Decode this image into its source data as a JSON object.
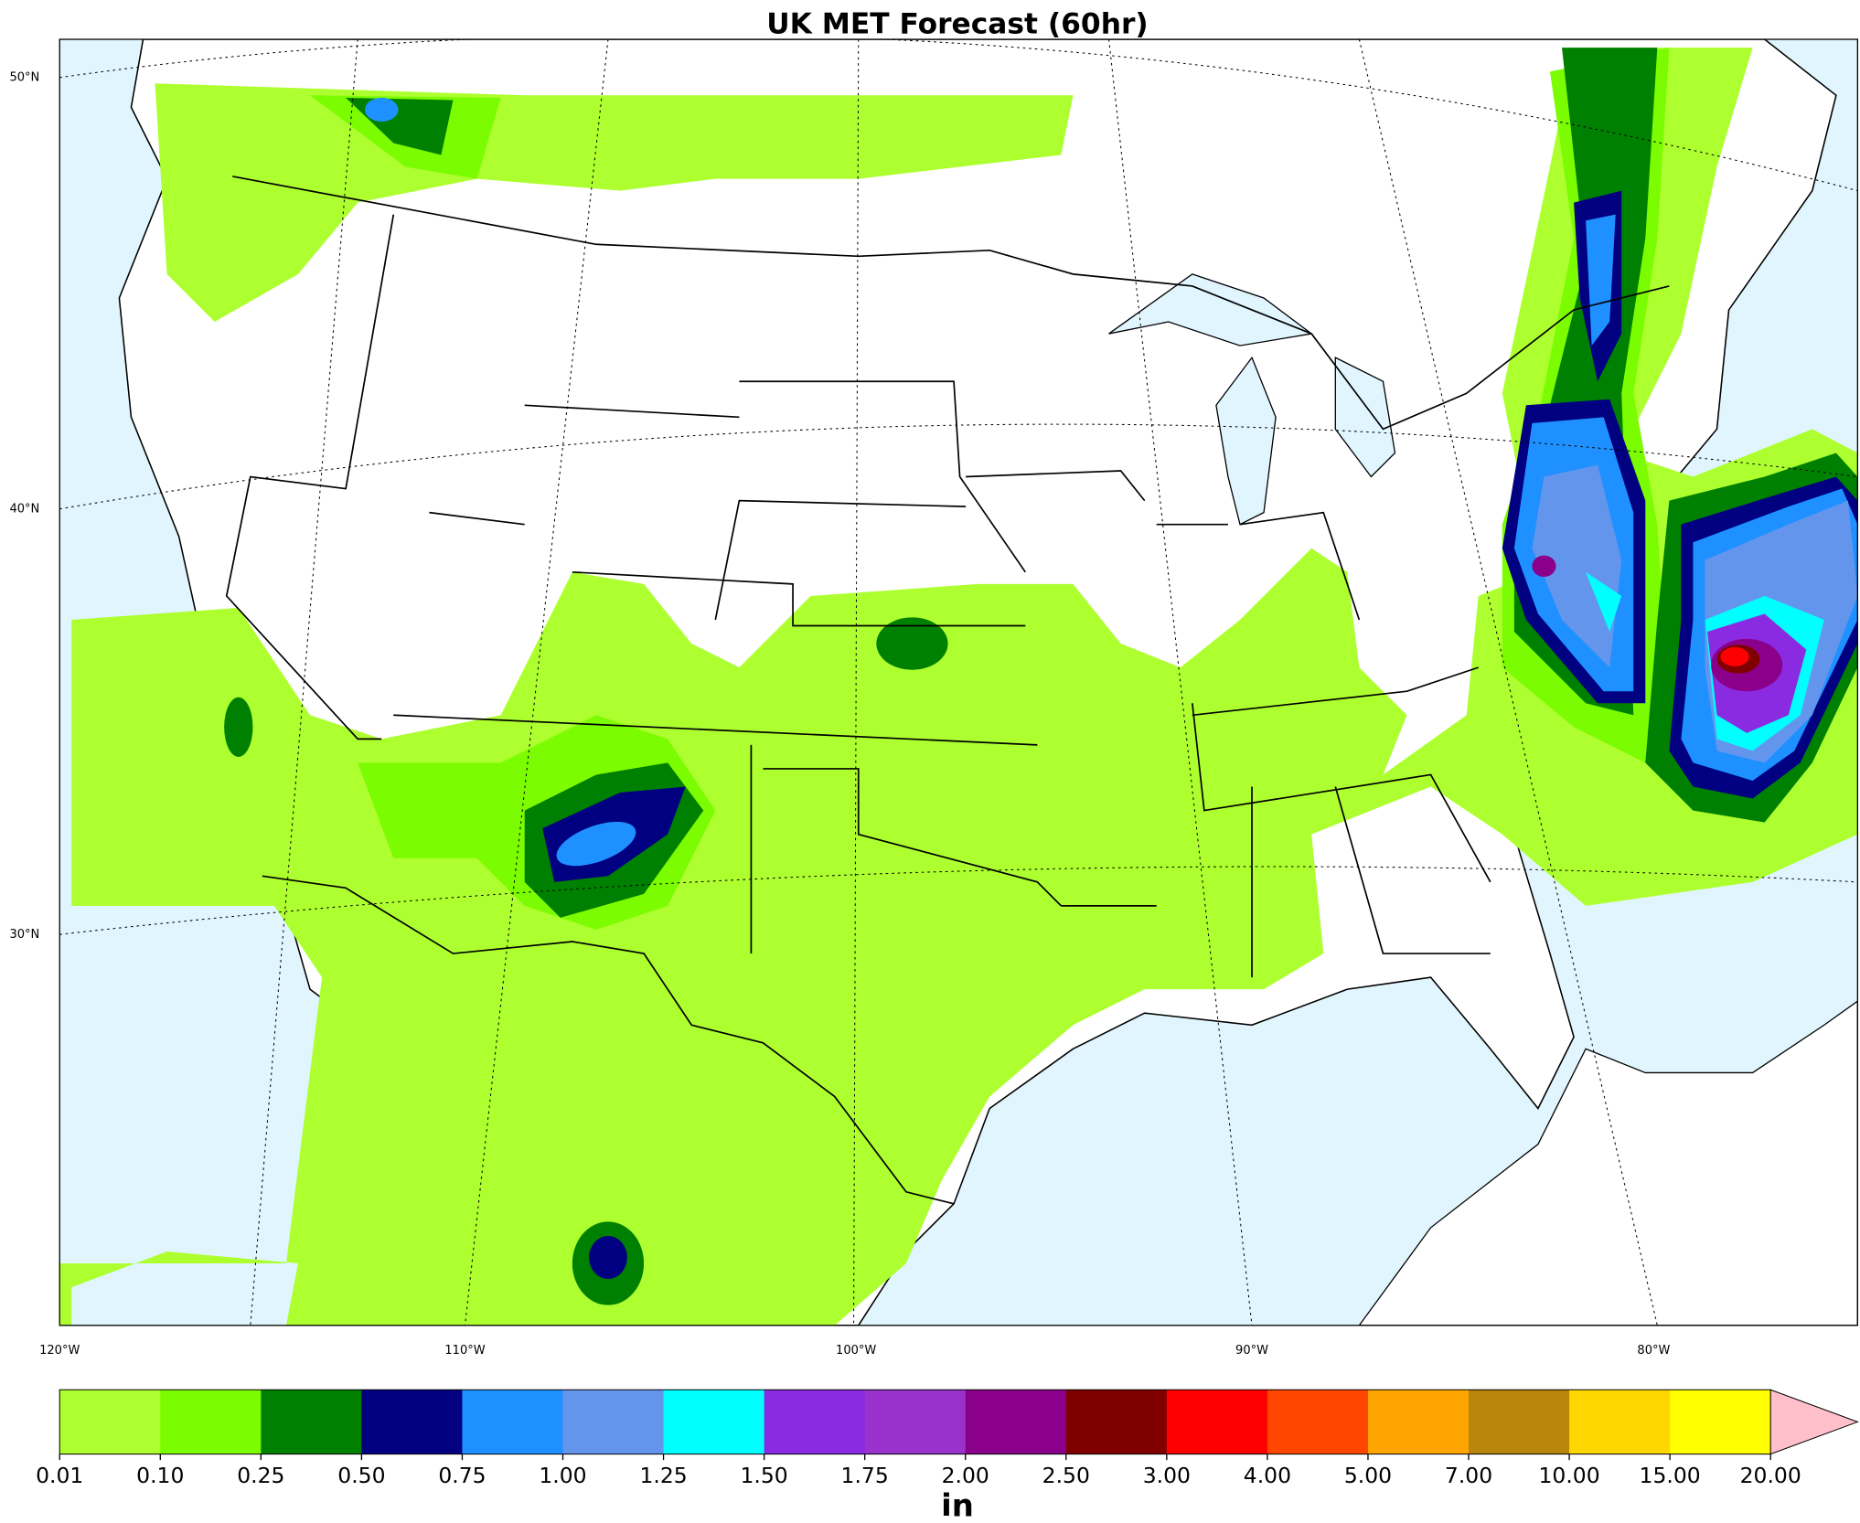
{
  "title": "UK MET Forecast (60hr)",
  "lat_labels": [
    "50°N",
    "40°N",
    "30°N"
  ],
  "lon_labels": [
    "120°W",
    "110°W",
    "100°W",
    "90°W",
    "80°W"
  ],
  "colorbar": {
    "ticks": [
      "0.01",
      "0.10",
      "0.25",
      "0.50",
      "0.75",
      "1.00",
      "1.25",
      "1.50",
      "1.75",
      "2.00",
      "2.50",
      "3.00",
      "4.00",
      "5.00",
      "7.00",
      "10.00",
      "15.00",
      "20.00"
    ],
    "colors": [
      "#adff2f",
      "#7cfc00",
      "#008000",
      "#000080",
      "#1e90ff",
      "#6495ed",
      "#00ffff",
      "#8a2be2",
      "#9932cc",
      "#8b008b",
      "#800000",
      "#ff0000",
      "#ff4500",
      "#ffa500",
      "#b8860b",
      "#ffd700",
      "#ffff00"
    ],
    "extend_color": "#ffc0cb",
    "unit": "in"
  }
}
